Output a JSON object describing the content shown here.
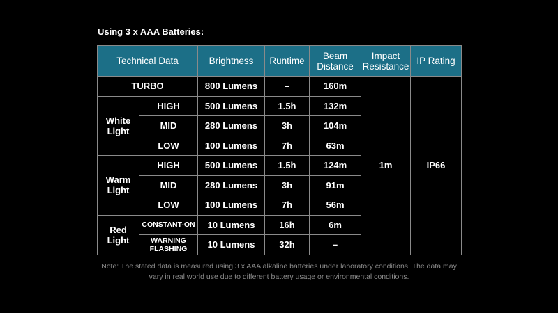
{
  "caption": "Using 3 x AAA Batteries:",
  "headers": {
    "technical_data": "Technical Data",
    "brightness": "Brightness",
    "runtime": "Runtime",
    "beam_distance": "Beam Distance",
    "impact_resistance": "Impact Resistance",
    "ip_rating": "IP Rating"
  },
  "shared": {
    "impact_resistance": "1m",
    "ip_rating": "IP66"
  },
  "groups": {
    "white": "White Light",
    "warm": "Warm Light",
    "red": "Red Light"
  },
  "rows": [
    {
      "mode": "TURBO",
      "brightness": "800 Lumens",
      "runtime": "–",
      "beam": "160m"
    },
    {
      "mode": "HIGH",
      "brightness": "500 Lumens",
      "runtime": "1.5h",
      "beam": "132m"
    },
    {
      "mode": "MID",
      "brightness": "280 Lumens",
      "runtime": "3h",
      "beam": "104m"
    },
    {
      "mode": "LOW",
      "brightness": "100 Lumens",
      "runtime": "7h",
      "beam": "63m"
    },
    {
      "mode": "HIGH",
      "brightness": "500 Lumens",
      "runtime": "1.5h",
      "beam": "124m"
    },
    {
      "mode": "MID",
      "brightness": "280 Lumens",
      "runtime": "3h",
      "beam": "91m"
    },
    {
      "mode": "LOW",
      "brightness": "100 Lumens",
      "runtime": "7h",
      "beam": "56m"
    },
    {
      "mode": "CONSTANT-ON",
      "brightness": "10 Lumens",
      "runtime": "16h",
      "beam": "6m"
    },
    {
      "mode": "WARNING FLASHING",
      "brightness": "10 Lumens",
      "runtime": "32h",
      "beam": "–"
    }
  ],
  "note": "Note: The stated data is measured using 3 x AAA alkaline batteries under laboratory conditions. The data may vary in real world use due to different battery usage or environmental conditions."
}
